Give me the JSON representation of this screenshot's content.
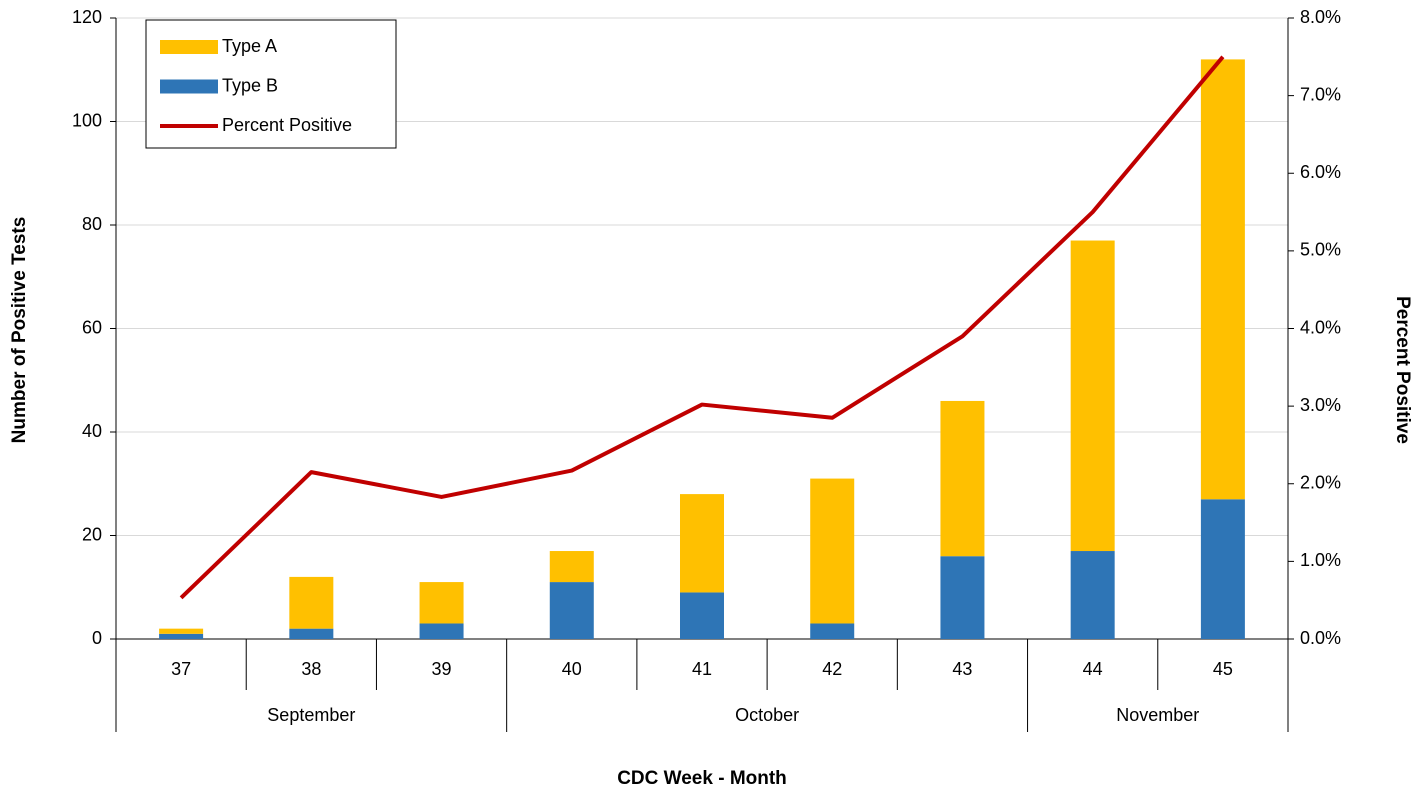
{
  "chart_data": {
    "type": "bar",
    "stacked": true,
    "categories": [
      "37",
      "38",
      "39",
      "40",
      "41",
      "42",
      "43",
      "44",
      "45"
    ],
    "month_categories": [
      "September",
      null,
      null,
      "October",
      null,
      null,
      null,
      "November",
      null
    ],
    "x_label": "CDC Week - Month",
    "y_label": "Number of Positive Tests",
    "y2_label": "Percent Positive",
    "series": [
      {
        "name": "Type A",
        "color": "#FFC000",
        "values": [
          1,
          10,
          8,
          6,
          19,
          28,
          30,
          60,
          85
        ]
      },
      {
        "name": "Type B",
        "color": "#2E75B6",
        "values": [
          1,
          2,
          3,
          11,
          9,
          3,
          16,
          17,
          27
        ]
      },
      {
        "name": "Percent Positive",
        "color": "#C00000",
        "axis": "y2",
        "values": [
          0.53,
          2.15,
          1.83,
          2.17,
          3.02,
          2.85,
          3.9,
          5.5,
          7.5
        ]
      }
    ],
    "ylim": [
      0,
      120
    ],
    "yticks": [
      0,
      20,
      40,
      60,
      80,
      100,
      120
    ],
    "y2lim": [
      0,
      8
    ],
    "y2ticks": [
      {
        "value": 0,
        "label": "0.0%"
      },
      {
        "value": 1,
        "label": "1.0%"
      },
      {
        "value": 2,
        "label": "2.0%"
      },
      {
        "value": 3,
        "label": "3.0%"
      },
      {
        "value": 4,
        "label": "4.0%"
      },
      {
        "value": 5,
        "label": "5.0%"
      },
      {
        "value": 6,
        "label": "6.0%"
      },
      {
        "value": 7,
        "label": "7.0%"
      },
      {
        "value": 8,
        "label": "8.0%"
      }
    ],
    "grid": true,
    "legend": "upper left"
  }
}
